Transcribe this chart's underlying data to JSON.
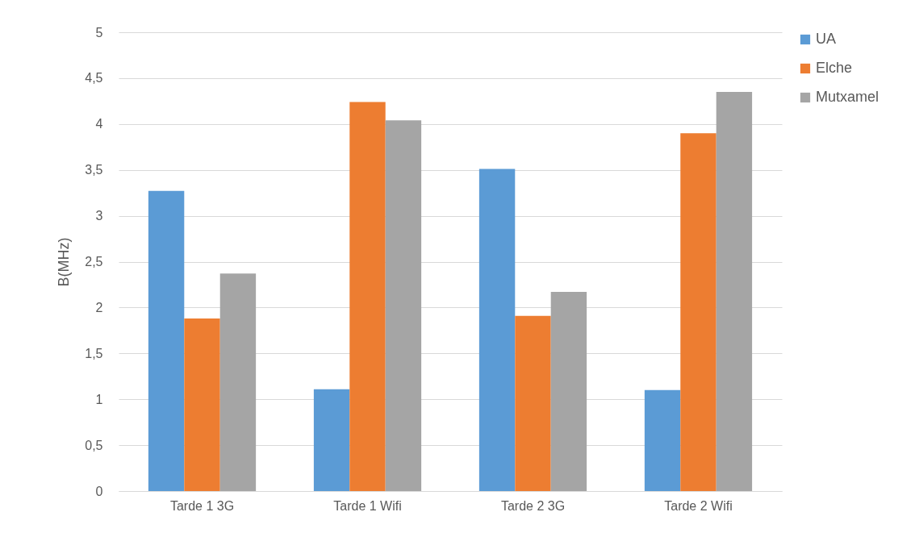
{
  "chart_data": {
    "type": "bar",
    "ylabel": "B(MHz)",
    "categories": [
      "Tarde 1 3G",
      "Tarde 1 Wifi",
      "Tarde 2 3G",
      "Tarde 2 Wifi"
    ],
    "series": [
      {
        "name": "UA",
        "color": "#5b9bd5",
        "values": [
          3.27,
          1.11,
          3.51,
          1.1
        ]
      },
      {
        "name": "Elche",
        "color": "#ed7d31",
        "values": [
          1.88,
          4.24,
          1.91,
          3.9
        ]
      },
      {
        "name": "Mutxamel",
        "color": "#a5a5a5",
        "values": [
          2.37,
          4.04,
          2.17,
          4.35
        ]
      }
    ],
    "ylim": [
      0,
      5
    ],
    "yticks": [
      0,
      {
        "value": 0.5,
        "label": "0,5"
      },
      1,
      {
        "value": 1.5,
        "label": "1,5"
      },
      2,
      {
        "value": 2.5,
        "label": "2,5"
      },
      3,
      {
        "value": 3.5,
        "label": "3,5"
      },
      4,
      {
        "value": 4.5,
        "label": "4,5"
      },
      5
    ],
    "grid": "y",
    "legend": "right"
  }
}
